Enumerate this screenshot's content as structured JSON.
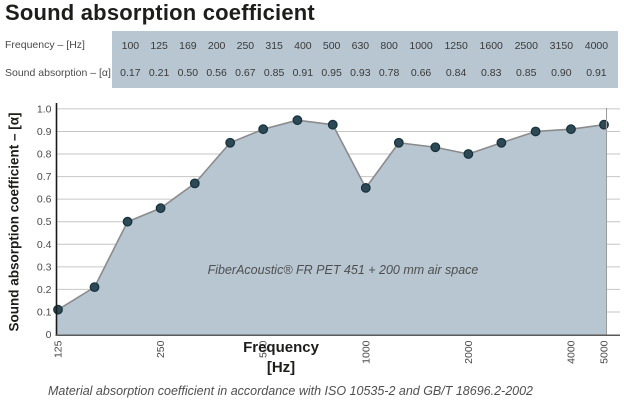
{
  "title": "Sound absorption coefficient",
  "table": {
    "row1_label": "Frequency – [Hz]",
    "row2_label": "Sound absorption – [α]",
    "frequencies": [
      "100",
      "125",
      "169",
      "200",
      "250",
      "315",
      "400",
      "500",
      "630",
      "800",
      "1000",
      "1250",
      "1600",
      "2500",
      "3150",
      "4000"
    ],
    "absorptions": [
      "0.17",
      "0.21",
      "0.50",
      "0.56",
      "0.67",
      "0.85",
      "0.91",
      "0.95",
      "0.93",
      "0.78",
      "0.66",
      "0.84",
      "0.83",
      "0.85",
      "0.90",
      "0.91"
    ]
  },
  "chart_data": {
    "type": "area",
    "x_scale": "log",
    "x": [
      125,
      160,
      200,
      250,
      315,
      400,
      500,
      630,
      800,
      1000,
      1250,
      1600,
      2000,
      2500,
      3150,
      4000,
      5000
    ],
    "values": [
      0.11,
      0.21,
      0.5,
      0.56,
      0.67,
      0.85,
      0.91,
      0.95,
      0.93,
      0.65,
      0.85,
      0.83,
      0.8,
      0.85,
      0.9,
      0.91,
      0.93
    ],
    "xlim": [
      125,
      5000
    ],
    "ylim": [
      0,
      1.0
    ],
    "xticks": [
      "125",
      "250",
      "500",
      "1000",
      "2000",
      "4000",
      "5000"
    ],
    "yticks": [
      "1.0",
      "0.9",
      "0.8",
      "0.7",
      "0.6",
      "0.5",
      "0.4",
      "0.3",
      "0.2",
      "0.1",
      "0"
    ],
    "xlabel": "Frequency [Hz]",
    "xlabel_lines": [
      "Frequency",
      "[Hz]"
    ],
    "ylabel": "Sound absorption coefficient – [α]",
    "annotation": "FiberAcoustic® FR PET 451 + 200 mm air space",
    "grid": "horizontal",
    "legend": "none",
    "colors": {
      "fill": "#b7c6d1",
      "line": "#8b8b8b",
      "marker": "#2c4955",
      "marker_stroke": "#16313c",
      "grid": "#c6c6c6",
      "axis": "#1a1a1a",
      "tick_text": "#4a4a4a"
    }
  },
  "caption": "Material absorption coefficient in accordance with ISO 10535-2 and GB/T 18696.2-2002"
}
